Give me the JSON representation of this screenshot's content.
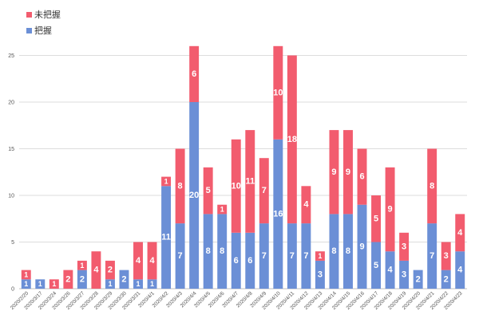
{
  "chart_data": {
    "type": "bar",
    "stacked": true,
    "title": "",
    "xlabel": "",
    "ylabel": "",
    "ylim": [
      0,
      30
    ],
    "yticks": [
      0,
      5,
      10,
      15,
      20,
      25
    ],
    "grid": true,
    "legend": {
      "placement": "top-left",
      "order": [
        "未把握",
        "把握"
      ]
    },
    "categories": [
      "2020/2/20",
      "2020/3/17",
      "2020/3/24",
      "2020/3/26",
      "2020/3/27",
      "2020/3/28",
      "2020/3/29",
      "2020/3/30",
      "2020/3/31",
      "2020/4/1",
      "2020/4/2",
      "2020/4/3",
      "2020/4/4",
      "2020/4/5",
      "2020/4/6",
      "2020/4/7",
      "2020/4/8",
      "2020/4/9",
      "2020/4/10",
      "2020/4/11",
      "2020/4/12",
      "2020/4/13",
      "2020/4/14",
      "2020/4/15",
      "2020/4/16",
      "2020/4/17",
      "2020/4/18",
      "2020/4/19",
      "2020/4/20",
      "2020/4/21",
      "2020/4/22",
      "2020/4/23"
    ],
    "series": [
      {
        "name": "把握",
        "color": "#6b8fd6",
        "values": [
          1,
          1,
          0,
          0,
          2,
          0,
          1,
          2,
          1,
          1,
          11,
          7,
          20,
          8,
          8,
          6,
          6,
          7,
          16,
          7,
          7,
          3,
          8,
          8,
          9,
          5,
          4,
          3,
          2,
          7,
          2,
          4
        ]
      },
      {
        "name": "未把握",
        "color": "#f25c6e",
        "values": [
          1,
          0,
          1,
          2,
          1,
          4,
          2,
          0,
          4,
          4,
          1,
          8,
          6,
          5,
          1,
          10,
          11,
          7,
          10,
          18,
          4,
          1,
          9,
          9,
          6,
          5,
          9,
          3,
          0,
          8,
          3,
          4
        ]
      }
    ]
  }
}
